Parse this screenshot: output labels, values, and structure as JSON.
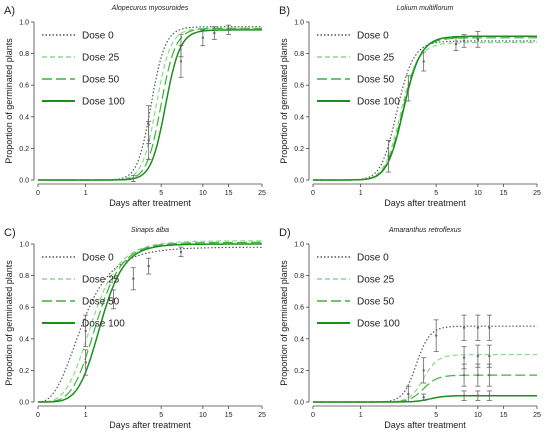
{
  "figure": {
    "ylabel": "Proportion of germinated plants",
    "xlabel": "Days after treatment",
    "colors": {
      "dose0": "#555555",
      "dose25": "#8fd88f",
      "dose50": "#3cb43c",
      "dose100": "#1a8f1a",
      "errbar": "#666666",
      "axis": "#444444"
    }
  },
  "chart_data": [
    {
      "type": "line",
      "panel_label": "A)",
      "title": "Alopecurus myosuroides",
      "xlabel": "Days after treatment",
      "ylabel": "Proportion of germinated plants",
      "x_scale": "log(x+1)",
      "x_ticks": [
        0,
        1,
        5,
        10,
        15,
        25
      ],
      "y_ticks": [
        0.0,
        0.2,
        0.4,
        0.6,
        0.8,
        1.0
      ],
      "ylim": [
        0,
        1
      ],
      "legend": [
        "Dose 0",
        "Dose 25",
        "Dose 50",
        "Dose 100"
      ],
      "series": [
        {
          "name": "Dose 0",
          "style": "dotted",
          "color": "#555555",
          "asym": 0.97,
          "e": 4.2,
          "b": 8
        },
        {
          "name": "Dose 25",
          "style": "dash-short",
          "color": "#8fd88f",
          "asym": 0.96,
          "e": 4.6,
          "b": 8
        },
        {
          "name": "Dose 50",
          "style": "dash-long",
          "color": "#3cb43c",
          "asym": 0.96,
          "e": 5.0,
          "b": 8
        },
        {
          "name": "Dose 100",
          "style": "solid",
          "color": "#1a8f1a",
          "asym": 0.95,
          "e": 5.4,
          "b": 8
        }
      ],
      "observations": [
        {
          "x": 3,
          "y": 0.01,
          "err": 0.02
        },
        {
          "x": 4,
          "y": 0.25,
          "err": 0.12
        },
        {
          "x": 4,
          "y": 0.35,
          "err": 0.12
        },
        {
          "x": 7,
          "y": 0.75,
          "err": 0.1
        },
        {
          "x": 7,
          "y": 0.85,
          "err": 0.07
        },
        {
          "x": 10,
          "y": 0.9,
          "err": 0.05
        },
        {
          "x": 12,
          "y": 0.93,
          "err": 0.04
        },
        {
          "x": 15,
          "y": 0.95,
          "err": 0.03
        }
      ]
    },
    {
      "type": "line",
      "panel_label": "B)",
      "title": "Lolium multiflorum",
      "xlabel": "Days after treatment",
      "ylabel": "Proportion of germinated plants",
      "x_scale": "log(x+1)",
      "x_ticks": [
        0,
        1,
        5,
        10,
        15,
        25
      ],
      "y_ticks": [
        0.0,
        0.2,
        0.4,
        0.6,
        0.8,
        1.0
      ],
      "ylim": [
        0,
        1
      ],
      "legend": [
        "Dose 0",
        "Dose 25",
        "Dose 50",
        "Dose 100"
      ],
      "series": [
        {
          "name": "Dose 0",
          "style": "dotted",
          "color": "#555555",
          "asym": 0.88,
          "e": 2.4,
          "b": 6
        },
        {
          "name": "Dose 25",
          "style": "dash-short",
          "color": "#8fd88f",
          "asym": 0.87,
          "e": 2.6,
          "b": 6
        },
        {
          "name": "Dose 50",
          "style": "dash-long",
          "color": "#3cb43c",
          "asym": 0.9,
          "e": 2.7,
          "b": 6
        },
        {
          "name": "Dose 100",
          "style": "solid",
          "color": "#1a8f1a",
          "asym": 0.91,
          "e": 2.75,
          "b": 6
        }
      ],
      "observations": [
        {
          "x": 2,
          "y": 0.15,
          "err": 0.1
        },
        {
          "x": 3,
          "y": 0.58,
          "err": 0.08
        },
        {
          "x": 4,
          "y": 0.75,
          "err": 0.06
        },
        {
          "x": 7,
          "y": 0.86,
          "err": 0.04
        },
        {
          "x": 8,
          "y": 0.88,
          "err": 0.04
        },
        {
          "x": 10,
          "y": 0.89,
          "err": 0.05
        }
      ]
    },
    {
      "type": "line",
      "panel_label": "C)",
      "title": "Sinapis alba",
      "xlabel": "Days after treatment",
      "ylabel": "Proportion of germinated plants",
      "x_scale": "log(x+1)",
      "x_ticks": [
        0,
        1,
        5,
        10,
        15,
        25
      ],
      "y_ticks": [
        0.0,
        0.2,
        0.4,
        0.6,
        0.8,
        1.0
      ],
      "ylim": [
        0,
        1
      ],
      "legend": [
        "Dose 0",
        "Dose 25",
        "Dose 50",
        "Dose 100"
      ],
      "series": [
        {
          "name": "Dose 0",
          "style": "dotted",
          "color": "#555555",
          "asym": 0.98,
          "e": 0.9,
          "b": 2.2
        },
        {
          "name": "Dose 25",
          "style": "dash-short",
          "color": "#8fd88f",
          "asym": 1.02,
          "e": 1.2,
          "b": 2.8
        },
        {
          "name": "Dose 50",
          "style": "dash-long",
          "color": "#3cb43c",
          "asym": 1.01,
          "e": 1.35,
          "b": 3.2
        },
        {
          "name": "Dose 100",
          "style": "solid",
          "color": "#1a8f1a",
          "asym": 1.0,
          "e": 1.5,
          "b": 3.6
        }
      ],
      "observations": [
        {
          "x": 1,
          "y": 0.45,
          "err": 0.1
        },
        {
          "x": 1,
          "y": 0.25,
          "err": 0.08
        },
        {
          "x": 2,
          "y": 0.65,
          "err": 0.06
        },
        {
          "x": 3,
          "y": 0.78,
          "err": 0.07
        },
        {
          "x": 4,
          "y": 0.86,
          "err": 0.05
        },
        {
          "x": 7,
          "y": 0.95,
          "err": 0.03
        }
      ]
    },
    {
      "type": "line",
      "panel_label": "D)",
      "title": "Amaranthus retroflexus",
      "xlabel": "Days after treatment",
      "ylabel": "Proportion of germinated plants",
      "x_scale": "log(x+1)",
      "x_ticks": [
        0,
        1,
        5,
        10,
        15,
        25
      ],
      "y_ticks": [
        0.0,
        0.2,
        0.4,
        0.6,
        0.8,
        1.0
      ],
      "ylim": [
        0,
        1
      ],
      "legend": [
        "Dose 0",
        "Dose 25",
        "Dose 50",
        "Dose 100"
      ],
      "series": [
        {
          "name": "Dose 0",
          "style": "dotted",
          "color": "#555555",
          "asym": 0.48,
          "e": 3.5,
          "b": 8
        },
        {
          "name": "Dose 25",
          "style": "dash-short",
          "color": "#8fd88f",
          "asym": 0.3,
          "e": 4.0,
          "b": 8
        },
        {
          "name": "Dose 50",
          "style": "dash-long",
          "color": "#3cb43c",
          "asym": 0.17,
          "e": 4.0,
          "b": 8
        },
        {
          "name": "Dose 100",
          "style": "solid",
          "color": "#1a8f1a",
          "asym": 0.04,
          "e": 4.5,
          "b": 8
        }
      ],
      "observations": [
        {
          "x": 3,
          "y": 0.05,
          "err": 0.05
        },
        {
          "x": 4,
          "y": 0.2,
          "err": 0.08
        },
        {
          "x": 5,
          "y": 0.42,
          "err": 0.1
        },
        {
          "x": 8,
          "y": 0.47,
          "err": 0.08
        },
        {
          "x": 10,
          "y": 0.47,
          "err": 0.08
        },
        {
          "x": 12,
          "y": 0.47,
          "err": 0.08
        },
        {
          "x": 8,
          "y": 0.28,
          "err": 0.07
        },
        {
          "x": 10,
          "y": 0.29,
          "err": 0.07
        },
        {
          "x": 12,
          "y": 0.29,
          "err": 0.07
        },
        {
          "x": 8,
          "y": 0.17,
          "err": 0.07
        },
        {
          "x": 10,
          "y": 0.17,
          "err": 0.07
        },
        {
          "x": 12,
          "y": 0.17,
          "err": 0.07
        },
        {
          "x": 4,
          "y": 0.03,
          "err": 0.02
        },
        {
          "x": 8,
          "y": 0.04,
          "err": 0.03
        },
        {
          "x": 10,
          "y": 0.04,
          "err": 0.03
        },
        {
          "x": 12,
          "y": 0.04,
          "err": 0.03
        }
      ]
    }
  ]
}
